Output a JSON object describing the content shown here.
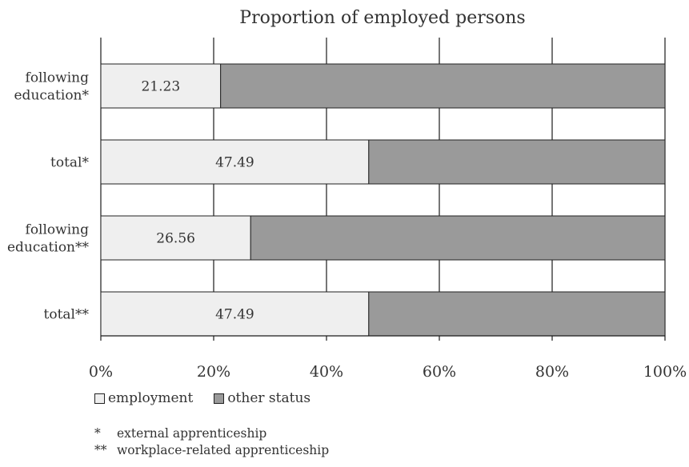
{
  "chart_data": {
    "type": "bar",
    "orientation": "horizontal",
    "stacked": true,
    "title": "Proportion of employed persons",
    "categories": [
      [
        "following",
        "education*"
      ],
      [
        "total*"
      ],
      [
        "following",
        "education**"
      ],
      [
        "total**"
      ]
    ],
    "series": [
      {
        "name": "employment",
        "values": [
          21.23,
          47.49,
          26.56,
          47.49
        ],
        "data_labels": [
          "21.23",
          "47.49",
          "26.56",
          "47.49"
        ],
        "color": "#efefef"
      },
      {
        "name": "other status",
        "values": [
          78.77,
          52.51,
          73.44,
          52.51
        ],
        "color": "#9a9a9a"
      }
    ],
    "xlim": [
      0,
      100
    ],
    "x_ticks": [
      0,
      20,
      40,
      60,
      80,
      100
    ],
    "x_tick_labels": [
      "0%",
      "20%",
      "40%",
      "60%",
      "80%",
      "100%"
    ],
    "grid": true,
    "legend_placement": "bottom-left"
  },
  "legend": {
    "items": [
      {
        "label": "employment",
        "color": "#efefef"
      },
      {
        "label": "other status",
        "color": "#9a9a9a"
      }
    ]
  },
  "notes": [
    {
      "mark": "*",
      "text": "external apprenticeship"
    },
    {
      "mark": "**",
      "text": "workplace-related apprenticeship"
    }
  ]
}
